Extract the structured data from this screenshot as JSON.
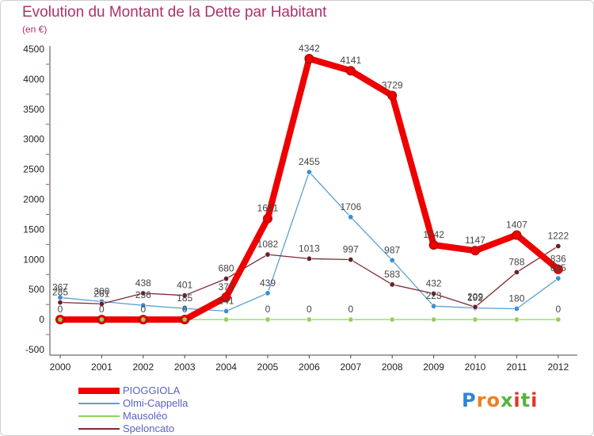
{
  "title": "Evolution du Montant de la Dette par Habitant",
  "unit": "(en €)",
  "logo": "Proxiti",
  "chart_data": {
    "type": "line",
    "title": "Evolution du Montant de la Dette par Habitant",
    "subtitle": "(en €)",
    "x": [
      "2000",
      "2001",
      "2002",
      "2003",
      "2004",
      "2005",
      "2006",
      "2007",
      "2008",
      "2009",
      "2010",
      "2011",
      "2012"
    ],
    "ylim": [
      -500,
      4500
    ],
    "yticks": [
      -500,
      0,
      500,
      1000,
      1500,
      2000,
      2500,
      3000,
      3500,
      4000,
      4500
    ],
    "grid": false,
    "legend": "bottom-left",
    "series": [
      {
        "name": "PIOGGIOLA",
        "color": "#ee0000",
        "values": [
          0,
          0,
          0,
          0,
          374,
          1681,
          4342,
          4141,
          3729,
          1242,
          1147,
          1407,
          836
        ],
        "labels": [
          "0",
          "0",
          "0",
          "0",
          "374",
          "1681",
          "4342",
          "4141",
          "3729",
          "1242",
          "1147",
          "1407",
          "836"
        ]
      },
      {
        "name": "Olmi-Cappella",
        "color": "#5d9fd3",
        "values": [
          367,
          300,
          236,
          185,
          141,
          439,
          2455,
          1706,
          987,
          223,
          192,
          180,
          685
        ],
        "labels": [
          "367",
          "300",
          "236",
          "185",
          "141",
          "439",
          "2455",
          "1706",
          "987",
          "223",
          "192",
          "180",
          "685"
        ]
      },
      {
        "name": "Mausoléo",
        "color": "#8ed45c",
        "values": [
          0,
          0,
          0,
          0,
          0,
          0,
          0,
          0,
          0,
          0,
          0,
          0,
          0
        ],
        "labels": [
          "",
          "",
          "",
          "",
          "",
          "0",
          "0",
          "0",
          "",
          "",
          "",
          "",
          "0"
        ]
      },
      {
        "name": "Speloncato",
        "color": "#7d2a34",
        "values": [
          285,
          261,
          438,
          401,
          680,
          1082,
          1013,
          997,
          583,
          432,
          209,
          788,
          1222
        ],
        "labels": [
          "285",
          "261",
          "438",
          "401",
          "680",
          "1082",
          "1013",
          "997",
          "583",
          "432",
          "209",
          "788",
          "1222"
        ]
      }
    ]
  }
}
